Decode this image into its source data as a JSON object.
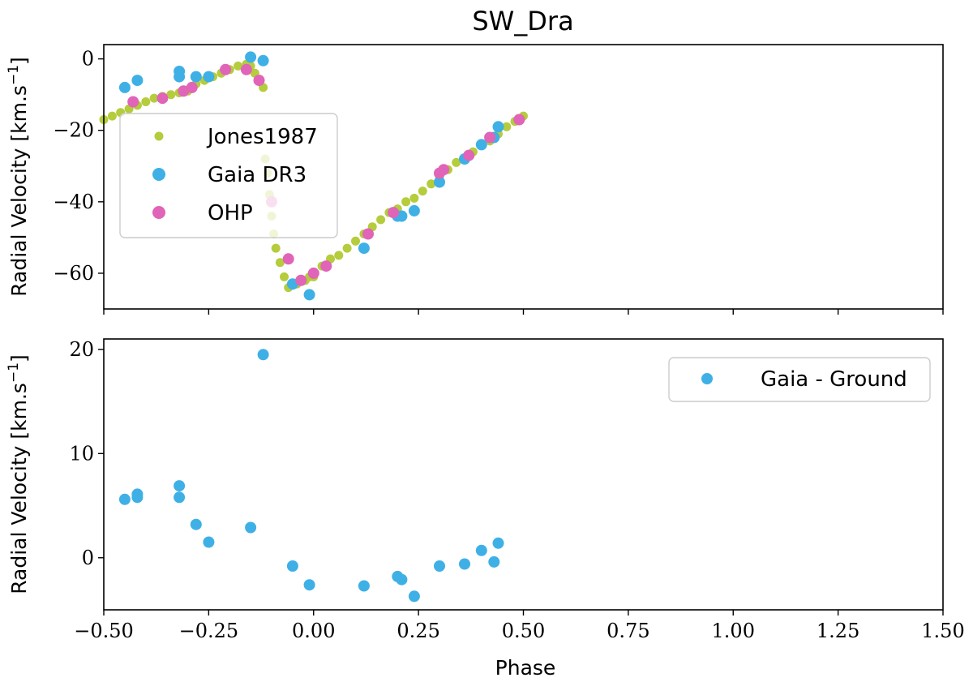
{
  "chart_data": [
    {
      "type": "scatter",
      "title": "SW_Dra",
      "xlabel": "",
      "ylabel": "Radial Velocity [km.s",
      "ylabel_sup": "−1",
      "ylabel_close": "]",
      "xlim": [
        -0.5,
        1.5
      ],
      "ylim": [
        -70,
        4
      ],
      "xticks": [
        -0.5,
        -0.25,
        0.0,
        0.25,
        0.5,
        0.75,
        1.0,
        1.25,
        1.5
      ],
      "yticks": [
        0,
        -20,
        -40,
        -60
      ],
      "ytick_labels": [
        "0",
        "−20",
        "−40",
        "−60"
      ],
      "legend_position": "center-left",
      "series": [
        {
          "name": "Jones1987",
          "color": "#b5cc3c",
          "x": [
            -0.5,
            -0.48,
            -0.46,
            -0.44,
            -0.42,
            -0.4,
            -0.38,
            -0.36,
            -0.34,
            -0.32,
            -0.3,
            -0.28,
            -0.26,
            -0.24,
            -0.22,
            -0.2,
            -0.18,
            -0.16,
            -0.15,
            -0.14,
            -0.13,
            -0.12,
            -0.115,
            -0.11,
            -0.105,
            -0.1,
            -0.095,
            -0.09,
            -0.08,
            -0.07,
            -0.06,
            -0.05,
            -0.04,
            -0.03,
            -0.02,
            -0.01,
            0.0,
            0.02,
            0.04,
            0.06,
            0.08,
            0.1,
            0.12,
            0.14,
            0.16,
            0.18,
            0.2,
            0.22,
            0.24,
            0.26,
            0.28,
            0.3,
            0.32,
            0.34,
            0.36,
            0.38,
            0.4,
            0.42,
            0.44,
            0.46,
            0.48,
            0.5
          ],
          "values": [
            -17,
            -16,
            -15,
            -14,
            -13,
            -12,
            -11,
            -10.5,
            -10,
            -9.5,
            -9,
            -7,
            -6,
            -5,
            -4,
            -3,
            -2,
            -1.5,
            -2,
            -4,
            -6,
            -8,
            -28,
            -32,
            -38,
            -44,
            -49,
            -53,
            -57,
            -61,
            -64,
            -63,
            -63,
            -62,
            -62,
            -61,
            -61,
            -58,
            -56,
            -55,
            -53,
            -51,
            -49,
            -47,
            -45,
            -43,
            -42,
            -40,
            -39,
            -37,
            -35,
            -33,
            -31,
            -29,
            -28,
            -26,
            -24,
            -23,
            -21,
            -19,
            -17.5,
            -16
          ]
        },
        {
          "name": "Gaia DR3",
          "color": "#3fb0e6",
          "x": [
            -0.45,
            -0.42,
            -0.32,
            -0.32,
            -0.28,
            -0.25,
            -0.15,
            -0.12,
            -0.05,
            -0.01,
            0.12,
            0.2,
            0.21,
            0.24,
            0.3,
            0.36,
            0.4,
            0.43,
            0.44
          ],
          "values": [
            -8,
            -6,
            -3.5,
            -5,
            -5,
            -5,
            0.5,
            -0.5,
            -63,
            -66,
            -53,
            -44,
            -44,
            -42.5,
            -34.5,
            -28,
            -24,
            -22,
            -19
          ]
        },
        {
          "name": "OHP",
          "color": "#e064b8",
          "x": [
            -0.43,
            -0.36,
            -0.31,
            -0.29,
            -0.21,
            -0.16,
            -0.13,
            -0.1,
            -0.06,
            -0.03,
            0.0,
            0.03,
            0.13,
            0.19,
            0.3,
            0.31,
            0.37,
            0.42,
            0.49
          ],
          "values": [
            -12,
            -11,
            -9,
            -8,
            -3,
            -3,
            -6,
            -40,
            -56,
            -62,
            -60,
            -58,
            -49,
            -43,
            -32,
            -31,
            -27,
            -22,
            -17
          ]
        }
      ]
    },
    {
      "type": "scatter",
      "title": "",
      "xlabel": "Phase",
      "ylabel": "Radial Velocity [km.s",
      "ylabel_sup": "−1",
      "ylabel_close": "]",
      "xlim": [
        -0.5,
        1.5
      ],
      "ylim": [
        -5,
        21
      ],
      "xticks": [
        -0.5,
        -0.25,
        0.0,
        0.25,
        0.5,
        0.75,
        1.0,
        1.25,
        1.5
      ],
      "xtick_labels": [
        "−0.50",
        "−0.25",
        "0.00",
        "0.25",
        "0.50",
        "0.75",
        "1.00",
        "1.25",
        "1.50"
      ],
      "yticks": [
        20,
        10,
        0
      ],
      "ytick_labels": [
        "20",
        "10",
        "0"
      ],
      "legend_position": "top-right",
      "series": [
        {
          "name": "Gaia - Ground",
          "color": "#3fb0e6",
          "x": [
            -0.45,
            -0.42,
            -0.42,
            -0.32,
            -0.32,
            -0.28,
            -0.25,
            -0.15,
            -0.12,
            -0.05,
            -0.01,
            0.12,
            0.2,
            0.21,
            0.24,
            0.3,
            0.36,
            0.4,
            0.43,
            0.44
          ],
          "values": [
            5.6,
            6.1,
            5.8,
            6.9,
            5.8,
            3.2,
            1.5,
            2.9,
            19.5,
            -0.8,
            -2.6,
            -2.7,
            -1.8,
            -2.1,
            -3.7,
            -0.8,
            -0.6,
            0.7,
            -0.4,
            1.4
          ]
        }
      ]
    }
  ]
}
